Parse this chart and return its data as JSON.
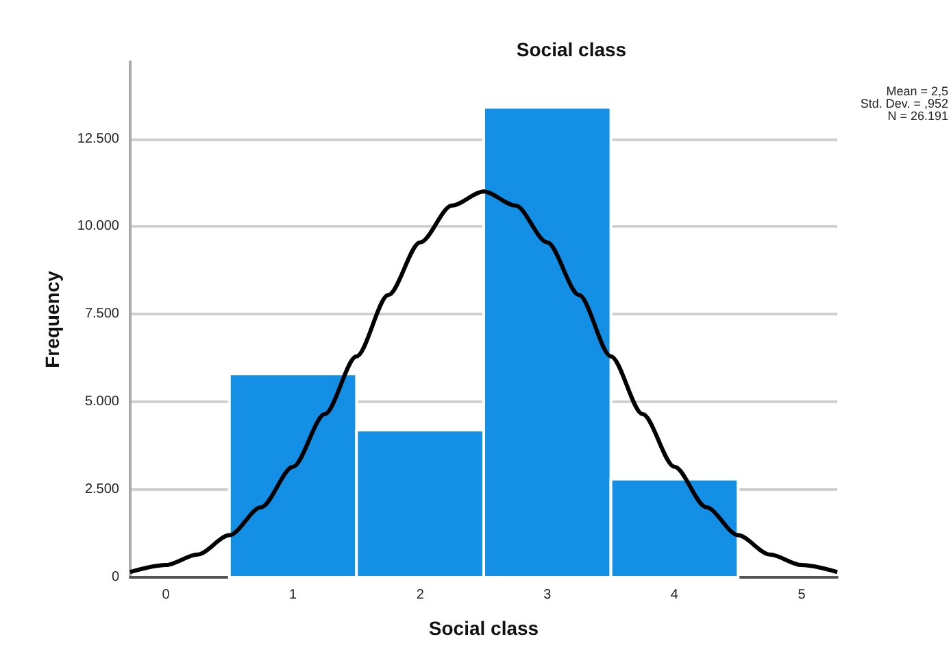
{
  "chart_data": {
    "type": "histogram",
    "title": "Social class",
    "xlabel": "Social class",
    "ylabel": "Frequency",
    "bins": [
      0.5,
      1.5,
      2.5,
      3.5,
      4.5
    ],
    "values": [
      5800,
      4200,
      13400,
      2800
    ],
    "color": "#1390e6",
    "series": [
      {
        "type": "line",
        "color": "#000000",
        "x": [
          -0.28,
          0,
          0.25,
          0.5,
          0.75,
          1,
          1.25,
          1.5,
          1.75,
          2,
          2.25,
          2.5,
          2.75,
          3,
          3.25,
          3.5,
          3.75,
          4,
          4.25,
          4.5,
          4.75,
          5,
          5.28
        ],
        "values": [
          150,
          350,
          650,
          1200,
          2000,
          3150,
          4650,
          6300,
          8050,
          9550,
          10600,
          11000,
          10600,
          9550,
          8050,
          6300,
          4650,
          3150,
          2000,
          1200,
          650,
          350,
          150
        ]
      }
    ],
    "xlim": [
      -0.28,
      5.28
    ],
    "xticks": [
      0,
      1,
      2,
      3,
      4,
      5
    ],
    "ylim": [
      0,
      14700
    ],
    "yticks": [
      0,
      {
        "value": 2500,
        "label": "2.500"
      },
      {
        "value": 5000,
        "label": "5.000"
      },
      {
        "value": 7500,
        "label": "7.500"
      },
      {
        "value": 10000,
        "label": "10.000"
      },
      {
        "value": 12500,
        "label": "12.500"
      }
    ],
    "grid": "y",
    "marker": "none",
    "line_style": "solid",
    "annotations": [
      "Mean = 2,5",
      "Std. Dev. = ,952",
      "N = 26.191"
    ]
  }
}
